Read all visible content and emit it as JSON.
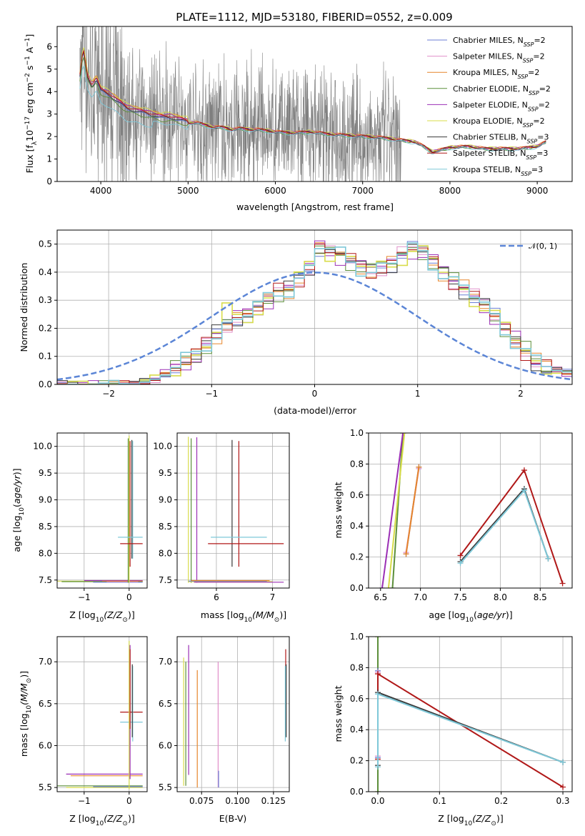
{
  "figure": {
    "title": "PLATE=1112, MJD=53180, FIBERID=0552, z=0.009"
  },
  "colors": {
    "Chabrier MILES": "#6b7fd6",
    "Salpeter MILES": "#e08fc9",
    "Kroupa MILES": "#e6862b",
    "Chabrier ELODIE": "#5c8f3a",
    "Salpeter ELODIE": "#9b2fb5",
    "Kroupa ELODIE": "#d8dc4a",
    "Chabrier STELIB": "#3a3a3a",
    "Salpeter STELIB": "#b01818",
    "Kroupa STELIB": "#7ec8d8",
    "data": "#7f7f7f",
    "normal": "#5b85d6"
  },
  "chart_data": [
    {
      "id": "spectrum",
      "type": "line",
      "xlabel": "wavelength [Angstrom, rest frame]",
      "ylabel_main": "Flux [f",
      "ylabel_sub": "λ",
      "ylabel_rest": "10",
      "ylabel_sup": "−17",
      "ylabel_tail": " erg cm",
      "ylabel_sup2": "−2",
      "ylabel_tail2": " s",
      "ylabel_sup3": "−1",
      "ylabel_tail3": " A",
      "ylabel_sup4": "−1",
      "ylabel_end": "]",
      "xlim": [
        3500,
        9400
      ],
      "ylim": [
        0,
        6.9
      ],
      "xticks": [
        "4000",
        "5000",
        "6000",
        "7000",
        "8000",
        "9000"
      ],
      "yticks": [
        "0",
        "1",
        "2",
        "3",
        "4",
        "5",
        "6"
      ],
      "model_curve": {
        "x": [
          3760,
          3800,
          3850,
          3900,
          3950,
          4000,
          4100,
          4200,
          4300,
          4400,
          4500,
          4600,
          4700,
          4800,
          4900,
          5000,
          5100,
          5200,
          5300,
          5400,
          5500,
          5600,
          5700,
          5800,
          5900,
          6000,
          6200,
          6400,
          6600,
          6800,
          7000,
          7200,
          7400,
          7600,
          7700,
          7800,
          8000,
          8200,
          8400,
          8600,
          8800,
          9000,
          9100
        ],
        "y": [
          4.6,
          5.8,
          4.6,
          4.2,
          4.5,
          4.0,
          3.8,
          3.5,
          3.2,
          3.1,
          3.0,
          2.9,
          2.8,
          2.8,
          2.7,
          2.6,
          2.6,
          2.5,
          2.4,
          2.4,
          2.3,
          2.35,
          2.3,
          2.3,
          2.25,
          2.2,
          2.15,
          2.2,
          2.1,
          2.05,
          2.0,
          1.95,
          1.85,
          1.75,
          1.55,
          1.3,
          1.5,
          1.55,
          1.45,
          1.45,
          1.45,
          1.55,
          1.75
        ]
      },
      "legend": [
        {
          "name": "Chabrier MILES, N",
          "sub": "SSP",
          "tail": "=2"
        },
        {
          "name": "Salpeter MILES, N",
          "sub": "SSP",
          "tail": "=2"
        },
        {
          "name": "Kroupa MILES, N",
          "sub": "SSP",
          "tail": "=2"
        },
        {
          "name": "Chabrier ELODIE, N",
          "sub": "SSP",
          "tail": "=2"
        },
        {
          "name": "Salpeter ELODIE, N",
          "sub": "SSP",
          "tail": "=2"
        },
        {
          "name": "Kroupa ELODIE, N",
          "sub": "SSP",
          "tail": "=2"
        },
        {
          "name": "Chabrier STELIB, N",
          "sub": "SSP",
          "tail": "=3"
        },
        {
          "name": "Salpeter STELIB, N",
          "sub": "SSP",
          "tail": "=3"
        },
        {
          "name": "Kroupa STELIB, N",
          "sub": "SSP",
          "tail": "=3"
        }
      ]
    },
    {
      "id": "residuals",
      "type": "histogram",
      "xlabel": "(data-model)/error",
      "ylabel": "Normed distribution",
      "xlim": [
        -2.5,
        2.5
      ],
      "ylim": [
        0,
        0.55
      ],
      "xticks": [
        "−2",
        "−1",
        "0",
        "1",
        "2"
      ],
      "xtick_values": [
        -2,
        -1,
        0,
        1,
        2
      ],
      "yticks": [
        "0.0",
        "0.1",
        "0.2",
        "0.3",
        "0.4",
        "0.5"
      ],
      "ytick_values": [
        0,
        0.1,
        0.2,
        0.3,
        0.4,
        0.5
      ],
      "legend_normal": "𝒩(0, 1)",
      "bin_width": 0.1,
      "bin_start": -2.5,
      "histogram": [
        0.0,
        0.0,
        0.0,
        0.0,
        0.0,
        0.0,
        0.0,
        0.0,
        0.01,
        0.02,
        0.04,
        0.06,
        0.08,
        0.1,
        0.14,
        0.18,
        0.22,
        0.24,
        0.25,
        0.27,
        0.3,
        0.33,
        0.34,
        0.38,
        0.42,
        0.49,
        0.47,
        0.46,
        0.44,
        0.42,
        0.41,
        0.42,
        0.43,
        0.46,
        0.48,
        0.47,
        0.44,
        0.4,
        0.37,
        0.34,
        0.31,
        0.28,
        0.24,
        0.2,
        0.16,
        0.12,
        0.08,
        0.06,
        0.05,
        0.04,
        0.03,
        0.02,
        0.02,
        0.01,
        0.01
      ]
    },
    {
      "id": "age-vs-Z",
      "type": "errorbar",
      "xlabel_main": "Z [log",
      "xlabel_sub": "10",
      "xlabel_tail": "(Z/Z",
      "xlabel_sub2": "⊙",
      "xlabel_end": ")]",
      "ylabel_main": "age  [log",
      "ylabel_sub": "10",
      "ylabel_tail": "(age/yr)]",
      "xlim": [
        -1.6,
        0.4
      ],
      "ylim": [
        7.35,
        10.25
      ],
      "xticks": [
        "−1",
        "0"
      ],
      "xtick_values": [
        -1,
        0
      ],
      "yticks": [
        "7.5",
        "8.0",
        "8.5",
        "9.0",
        "9.5",
        "10.0"
      ],
      "ytick_values": [
        7.5,
        8.0,
        8.5,
        9.0,
        9.5,
        10.0
      ]
    },
    {
      "id": "age-vs-mass",
      "type": "errorbar",
      "xlabel_main": "mass [log",
      "xlabel_sub": "10",
      "xlabel_tail": "(M/M",
      "xlabel_sub2": "⊙",
      "xlabel_end": ")]",
      "xlim": [
        5.3,
        7.3
      ],
      "ylim": [
        7.35,
        10.25
      ],
      "xticks": [
        "6",
        "7"
      ],
      "xtick_values": [
        6,
        7
      ],
      "yticks": [
        "7.5",
        "8.0",
        "8.5",
        "9.0",
        "9.5",
        "10.0"
      ],
      "ytick_values": [
        7.5,
        8.0,
        8.5,
        9.0,
        9.5,
        10.0
      ]
    },
    {
      "id": "weight-vs-age",
      "type": "line",
      "xlabel_main": "age  [log",
      "xlabel_sub": "10",
      "xlabel_tail": "(age/yr)]",
      "ylabel": "mass weight",
      "xlim": [
        6.35,
        8.9
      ],
      "ylim": [
        0,
        1
      ],
      "xticks": [
        "6.5",
        "7.0",
        "7.5",
        "8.0",
        "8.5"
      ],
      "xtick_values": [
        6.5,
        7.0,
        7.5,
        8.0,
        8.5
      ],
      "yticks": [
        "0.0",
        "0.2",
        "0.4",
        "0.6",
        "0.8",
        "1.0"
      ],
      "ytick_values": [
        0,
        0.2,
        0.4,
        0.6,
        0.8,
        1.0
      ],
      "series": [
        {
          "key": "Chabrier MILES",
          "x": [
            6.82,
            6.98
          ],
          "y": [
            0.22,
            0.78
          ]
        },
        {
          "key": "Salpeter MILES",
          "x": [
            6.82,
            6.98
          ],
          "y": [
            0.23,
            0.77
          ]
        },
        {
          "key": "Kroupa MILES",
          "x": [
            6.82,
            6.98
          ],
          "y": [
            0.22,
            0.78
          ]
        },
        {
          "key": "Chabrier ELODIE",
          "x": [
            6.65,
            6.78
          ],
          "y": [
            0.0,
            1.0
          ]
        },
        {
          "key": "Salpeter ELODIE",
          "x": [
            6.52,
            6.78
          ],
          "y": [
            0.0,
            1.0
          ]
        },
        {
          "key": "Kroupa ELODIE",
          "x": [
            6.6,
            6.8
          ],
          "y": [
            0.0,
            1.0
          ]
        },
        {
          "key": "Chabrier STELIB",
          "x": [
            7.5,
            8.3,
            8.6
          ],
          "y": [
            0.17,
            0.64,
            0.19
          ]
        },
        {
          "key": "Salpeter STELIB",
          "x": [
            7.5,
            8.3,
            8.78
          ],
          "y": [
            0.21,
            0.76,
            0.03
          ]
        },
        {
          "key": "Kroupa STELIB",
          "x": [
            7.5,
            8.3,
            8.6
          ],
          "y": [
            0.16,
            0.63,
            0.19
          ]
        }
      ]
    },
    {
      "id": "mass-vs-Z",
      "type": "errorbar",
      "xlabel_main": "Z [log",
      "xlabel_sub": "10",
      "xlabel_tail": "(Z/Z",
      "xlabel_sub2": "⊙",
      "xlabel_end": ")]",
      "ylabel_main": "mass [log",
      "ylabel_sub": "10",
      "ylabel_tail": "(M/M",
      "ylabel_sub2": "⊙",
      "ylabel_end": ")]",
      "xlim": [
        -1.6,
        0.4
      ],
      "ylim": [
        5.45,
        7.3
      ],
      "xticks": [
        "−1",
        "0"
      ],
      "xtick_values": [
        -1,
        0
      ],
      "yticks": [
        "5.5",
        "6.0",
        "6.5",
        "7.0"
      ],
      "ytick_values": [
        5.5,
        6.0,
        6.5,
        7.0
      ]
    },
    {
      "id": "mass-vs-EBV",
      "type": "errorbar",
      "xlabel": "E(B-V)",
      "xlim": [
        0.058,
        0.136
      ],
      "ylim": [
        5.45,
        7.3
      ],
      "xticks": [
        "0.075",
        "0.100",
        "0.125"
      ],
      "xtick_values": [
        0.075,
        0.1,
        0.125
      ],
      "yticks": [
        "5.5",
        "6.0",
        "6.5",
        "7.0"
      ],
      "ytick_values": [
        5.5,
        6.0,
        6.5,
        7.0
      ]
    },
    {
      "id": "weight-vs-Z",
      "type": "line",
      "xlabel_main": "Z [log",
      "xlabel_sub": "10",
      "xlabel_tail": "(Z/Z",
      "xlabel_sub2": "⊙",
      "xlabel_end": ")]",
      "ylabel": "mass weight",
      "xlim": [
        -0.015,
        0.315
      ],
      "ylim": [
        0,
        1
      ],
      "xticks": [
        "0.0",
        "0.1",
        "0.2",
        "0.3"
      ],
      "xtick_values": [
        0,
        0.1,
        0.2,
        0.3
      ],
      "yticks": [
        "0.0",
        "0.2",
        "0.4",
        "0.6",
        "0.8",
        "1.0"
      ],
      "ytick_values": [
        0,
        0.2,
        0.4,
        0.6,
        0.8,
        1.0
      ],
      "series": [
        {
          "key": "Kroupa ELODIE",
          "x": [
            0.0,
            0.0
          ],
          "y": [
            0.0,
            1.0
          ]
        },
        {
          "key": "Chabrier ELODIE",
          "x": [
            0.0,
            0.0
          ],
          "y": [
            0.0,
            1.0
          ]
        },
        {
          "key": "Chabrier MILES",
          "x": [
            0.0,
            0.0
          ],
          "y": [
            0.22,
            0.78
          ]
        },
        {
          "key": "Salpeter MILES",
          "x": [
            0.0,
            0.0
          ],
          "y": [
            0.23,
            0.77
          ]
        },
        {
          "key": "Salpeter STELIB",
          "x": [
            0.0,
            0.0,
            0.3
          ],
          "y": [
            0.21,
            0.76,
            0.03
          ]
        },
        {
          "key": "Chabrier STELIB",
          "x": [
            0.0,
            0.0,
            0.3
          ],
          "y": [
            0.17,
            0.64,
            0.19
          ]
        },
        {
          "key": "Kroupa STELIB",
          "x": [
            0.0,
            0.0,
            0.3
          ],
          "y": [
            0.16,
            0.63,
            0.19
          ]
        }
      ]
    }
  ]
}
